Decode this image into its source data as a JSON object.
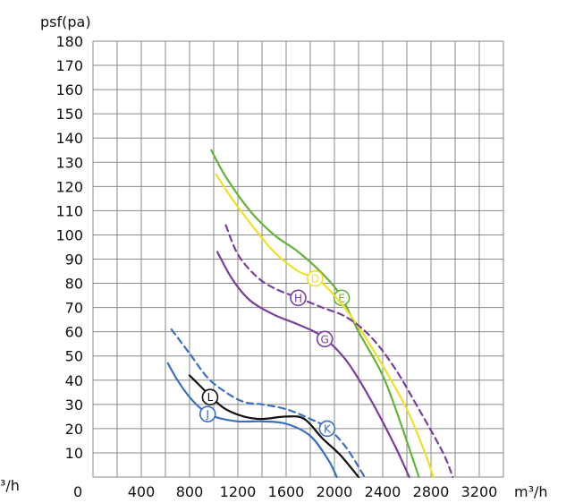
{
  "chart_data": {
    "type": "line",
    "ylabel": "psf(pa)",
    "xlabel": "m³/h",
    "left_edge_label": "³/h",
    "zero_label": "0",
    "x_ticks": [
      400,
      800,
      1200,
      1600,
      2000,
      2400,
      2800,
      3200
    ],
    "y_ticks": [
      10,
      20,
      30,
      40,
      50,
      60,
      70,
      80,
      90,
      100,
      110,
      120,
      130,
      140,
      150,
      160,
      170,
      180
    ],
    "xlim": [
      0,
      3400
    ],
    "ylim": [
      0,
      180
    ],
    "grid": true,
    "series": [
      {
        "name": "E",
        "color": "#64b33a",
        "style": "solid",
        "label_at": [
          2060,
          74
        ],
        "points": [
          [
            980,
            135
          ],
          [
            1100,
            124
          ],
          [
            1300,
            110
          ],
          [
            1500,
            100
          ],
          [
            1700,
            93
          ],
          [
            1900,
            84
          ],
          [
            2050,
            75
          ],
          [
            2200,
            60
          ],
          [
            2400,
            42
          ],
          [
            2550,
            22
          ],
          [
            2700,
            0
          ]
        ]
      },
      {
        "name": "D",
        "color": "#f0e028",
        "style": "solid",
        "label_at": [
          1840,
          82
        ],
        "points": [
          [
            1020,
            125
          ],
          [
            1150,
            115
          ],
          [
            1300,
            105
          ],
          [
            1500,
            93
          ],
          [
            1700,
            85
          ],
          [
            1850,
            82
          ],
          [
            2000,
            75
          ],
          [
            2200,
            62
          ],
          [
            2400,
            46
          ],
          [
            2600,
            28
          ],
          [
            2750,
            10
          ],
          [
            2820,
            0
          ]
        ]
      },
      {
        "name": "H",
        "color": "#7a3e9d",
        "style": "dashed",
        "label_at": [
          1700,
          74
        ],
        "points": [
          [
            1100,
            104
          ],
          [
            1200,
            92
          ],
          [
            1350,
            83
          ],
          [
            1500,
            78
          ],
          [
            1700,
            74
          ],
          [
            1900,
            70
          ],
          [
            2100,
            66
          ],
          [
            2300,
            58
          ],
          [
            2500,
            45
          ],
          [
            2700,
            28
          ],
          [
            2900,
            10
          ],
          [
            2980,
            0
          ]
        ]
      },
      {
        "name": "G",
        "color": "#7a3e9d",
        "style": "solid",
        "label_at": [
          1920,
          57
        ],
        "points": [
          [
            1030,
            93
          ],
          [
            1150,
            82
          ],
          [
            1300,
            73
          ],
          [
            1500,
            67
          ],
          [
            1700,
            63
          ],
          [
            1900,
            58
          ],
          [
            2100,
            48
          ],
          [
            2300,
            32
          ],
          [
            2500,
            13
          ],
          [
            2620,
            0
          ]
        ]
      },
      {
        "name": "L",
        "color": "#111111",
        "style": "solid",
        "label_at": [
          970,
          33
        ],
        "points": [
          [
            800,
            42
          ],
          [
            900,
            37
          ],
          [
            1000,
            32
          ],
          [
            1100,
            28
          ],
          [
            1250,
            25
          ],
          [
            1400,
            24
          ],
          [
            1600,
            25
          ],
          [
            1750,
            24
          ],
          [
            1900,
            16
          ],
          [
            2050,
            9
          ],
          [
            2200,
            0
          ]
        ]
      },
      {
        "name": "K",
        "color": "#3a6fc4",
        "style": "dashed",
        "label_at": [
          1940,
          20
        ],
        "points": [
          [
            650,
            61
          ],
          [
            800,
            51
          ],
          [
            950,
            41
          ],
          [
            1100,
            35
          ],
          [
            1250,
            31
          ],
          [
            1400,
            30
          ],
          [
            1600,
            28
          ],
          [
            1800,
            24
          ],
          [
            1950,
            20
          ],
          [
            2100,
            12
          ],
          [
            2250,
            0
          ]
        ]
      },
      {
        "name": "J",
        "color": "#3a6fc4",
        "style": "solid",
        "label_at": [
          950,
          26
        ],
        "points": [
          [
            620,
            47
          ],
          [
            700,
            40
          ],
          [
            800,
            33
          ],
          [
            900,
            28
          ],
          [
            1000,
            25
          ],
          [
            1200,
            23
          ],
          [
            1400,
            23
          ],
          [
            1600,
            22
          ],
          [
            1800,
            17
          ],
          [
            1950,
            7
          ],
          [
            2020,
            0
          ]
        ]
      }
    ]
  }
}
